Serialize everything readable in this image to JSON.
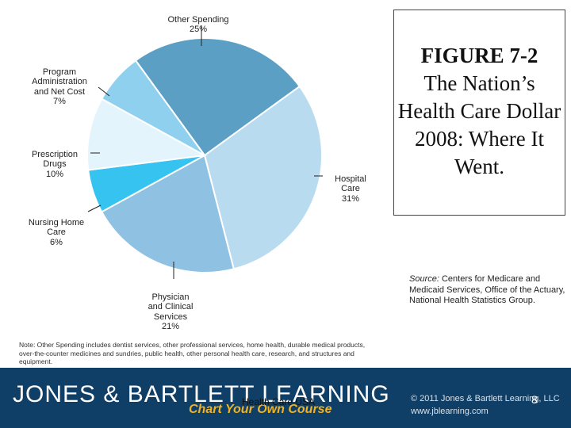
{
  "chart_data": {
    "type": "pie",
    "slices": [
      {
        "label": "Other Spending",
        "value": 25,
        "pct_label": "25%",
        "color": "#5b9fc4"
      },
      {
        "label": "Hospital Care",
        "value": 31,
        "pct_label": "31%",
        "color": "#b9dbef"
      },
      {
        "label": "Physician and Clinical Services",
        "value": 21,
        "pct_label": "21%",
        "color": "#8fc1e3"
      },
      {
        "label": "Nursing Home Care",
        "value": 6,
        "pct_label": "6%",
        "color": "#36c3f0"
      },
      {
        "label": "Prescription Drugs",
        "value": 10,
        "pct_label": "10%",
        "color": "#e4f4fc"
      },
      {
        "label": "Program Administration and Net Cost",
        "value": 7,
        "pct_label": "7%",
        "color": "#8fd0ee"
      }
    ]
  },
  "labels": {
    "other": {
      "line1": "Other Spending",
      "line2": "25%"
    },
    "hospital": {
      "line1": "Hospital",
      "line2": "Care",
      "line3": "31%"
    },
    "physician": {
      "line1": "Physician",
      "line2": "and Clinical",
      "line3": "Services",
      "line4": "21%"
    },
    "nursing": {
      "line1": "Nursing Home",
      "line2": "Care",
      "line3": "6%"
    },
    "drugs": {
      "line1": "Prescription",
      "line2": "Drugs",
      "line3": "10%"
    },
    "admin": {
      "line1": "Program",
      "line2": "Administration",
      "line3": "and Net Cost",
      "line4": "7%"
    }
  },
  "figure": {
    "number": "FIGURE 7-2",
    "title": "The Nation’s Health Care Dollar 2008: Where It Went."
  },
  "source": {
    "prefix": "Source:",
    "text": " Centers for Medicare and Medicaid Services, Office of the Actuary, National Health Statistics Group."
  },
  "note": "Note: Other Spending includes dentist services, other professional services, home health, durable medical products, over-the-counter medicines and sundries, public health, other personal health care, research, and structures and equipment.",
  "footer": {
    "brand": "JONES & BARTLETT LEARNING",
    "slogan": "Chart Your Own Course",
    "copyright": "© 2011 Jones & Bartlett Learning, LLC",
    "website": "www.jblearning.com",
    "course": "Health Care USA",
    "page": "8"
  }
}
